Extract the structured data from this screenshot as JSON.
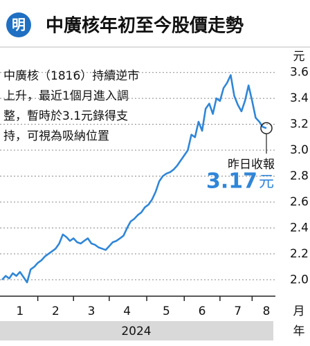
{
  "logo": "明",
  "chart_data": {
    "type": "line",
    "title": "中廣核年初至今股價走勢",
    "annotation": [
      "中廣核（1816）持續逆市",
      "上升，最近1個月進入調",
      "整，暫時於3.1元錄得支",
      "持，可視為吸納位置"
    ],
    "callout": "昨日收報",
    "y_unit": "元",
    "x_unit": "月",
    "year": "2024",
    "year_unit": "年",
    "categories": [
      null,
      null,
      null,
      null,
      null,
      "1",
      null,
      null,
      null,
      null,
      null,
      null,
      null,
      null,
      null,
      "2",
      null,
      null,
      null,
      null,
      null,
      null,
      null,
      null,
      null,
      "3",
      null,
      null,
      null,
      null,
      null,
      null,
      null,
      null,
      null,
      "4",
      null,
      null,
      null,
      null,
      null,
      null,
      null,
      null,
      null,
      null,
      "5",
      null,
      null,
      null,
      null,
      null,
      null,
      null,
      null,
      null,
      "6",
      null,
      null,
      null,
      null,
      null,
      null,
      null,
      null,
      null,
      "7",
      null,
      null,
      null,
      null,
      null,
      null,
      null,
      "8"
    ],
    "series": [
      {
        "color": "#2f86d8",
        "values": [
          2.0,
          2.03,
          2.01,
          2.05,
          2.03,
          2.06,
          2.02,
          1.98,
          2.08,
          2.1,
          2.13,
          2.15,
          2.18,
          2.2,
          2.22,
          2.24,
          2.28,
          2.35,
          2.33,
          2.3,
          2.32,
          2.29,
          2.28,
          2.3,
          2.32,
          2.28,
          2.27,
          2.25,
          2.24,
          2.23,
          2.26,
          2.29,
          2.3,
          2.32,
          2.34,
          2.4,
          2.45,
          2.47,
          2.5,
          2.52,
          2.56,
          2.58,
          2.62,
          2.68,
          2.76,
          2.8,
          2.82,
          2.83,
          2.85,
          2.88,
          2.92,
          2.96,
          3.0,
          3.12,
          3.1,
          3.22,
          3.15,
          3.32,
          3.36,
          3.28,
          3.4,
          3.38,
          3.48,
          3.52,
          3.58,
          3.42,
          3.35,
          3.3,
          3.38,
          3.5,
          3.38,
          3.25,
          3.22,
          3.18,
          3.17
        ]
      }
    ],
    "ylim": [
      1.9,
      3.7
    ],
    "yticks": [
      {
        "value": 2,
        "label": "2.0"
      },
      2.2,
      2.4,
      2.6,
      2.8,
      {
        "value": 3,
        "label": "3.0"
      },
      3.2,
      3.4,
      3.6
    ],
    "grid": true
  }
}
